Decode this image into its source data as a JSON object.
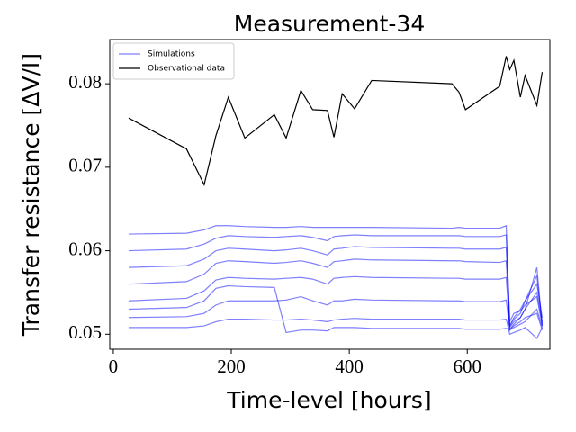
{
  "chart_data": {
    "type": "line",
    "title": "Measurement-34",
    "xlabel": "Time-level [hours]",
    "ylabel": "Transfer resistance [ΔV/I]",
    "x": [
      26,
      124,
      154,
      174,
      195,
      223,
      273,
      293,
      318,
      338,
      363,
      374,
      388,
      409,
      438,
      574,
      586,
      597,
      655,
      666,
      672,
      679,
      690,
      698,
      718,
      727
    ],
    "xlim": [
      -6,
      740
    ],
    "ylim": [
      0.0482,
      0.0853
    ],
    "xticks": [
      0,
      200,
      400,
      600
    ],
    "yticks": [
      0.05,
      0.06,
      0.07,
      0.08
    ],
    "grid": false,
    "legend": "upper left",
    "series": [
      {
        "name": "Simulations",
        "color": "#0000ff",
        "alpha": 0.5,
        "values": [
          0.062,
          0.0621,
          0.0625,
          0.063,
          0.063,
          0.0629,
          0.0628,
          0.0628,
          0.0629,
          0.0628,
          0.0628,
          0.0628,
          0.0628,
          0.0628,
          0.0628,
          0.0627,
          0.0628,
          0.0627,
          0.0627,
          0.063,
          0.051,
          0.052,
          0.053,
          0.054,
          0.056,
          0.052
        ]
      },
      {
        "name": "Simulations",
        "color": "#0000ff",
        "alpha": 0.5,
        "values": [
          0.06,
          0.0602,
          0.0608,
          0.0615,
          0.0618,
          0.0617,
          0.0616,
          0.0617,
          0.0618,
          0.0616,
          0.0612,
          0.0617,
          0.0618,
          0.0619,
          0.0618,
          0.0618,
          0.0618,
          0.0617,
          0.0617,
          0.0619,
          0.0515,
          0.0525,
          0.0528,
          0.0535,
          0.0545,
          0.051
        ]
      },
      {
        "name": "Simulations",
        "color": "#0000ff",
        "alpha": 0.5,
        "values": [
          0.058,
          0.0582,
          0.059,
          0.06,
          0.0603,
          0.0602,
          0.06,
          0.0601,
          0.0603,
          0.06,
          0.0595,
          0.0602,
          0.0603,
          0.0605,
          0.0604,
          0.0603,
          0.0603,
          0.0602,
          0.0602,
          0.0604,
          0.0505,
          0.0512,
          0.052,
          0.053,
          0.055,
          0.0515
        ]
      },
      {
        "name": "Simulations",
        "color": "#0000ff",
        "alpha": 0.5,
        "values": [
          0.056,
          0.0563,
          0.0572,
          0.0585,
          0.0588,
          0.0587,
          0.0585,
          0.0586,
          0.0588,
          0.0585,
          0.058,
          0.0587,
          0.0588,
          0.059,
          0.0589,
          0.0588,
          0.0588,
          0.0587,
          0.0586,
          0.0588,
          0.051,
          0.0518,
          0.0525,
          0.054,
          0.057,
          0.0512
        ]
      },
      {
        "name": "Simulations",
        "color": "#0000ff",
        "alpha": 0.5,
        "values": [
          0.054,
          0.0543,
          0.0552,
          0.0565,
          0.0568,
          0.0567,
          0.0566,
          0.0567,
          0.0568,
          0.0566,
          0.056,
          0.0567,
          0.0568,
          0.0569,
          0.0568,
          0.0567,
          0.0567,
          0.0566,
          0.0566,
          0.0568,
          0.0508,
          0.0515,
          0.052,
          0.053,
          0.058,
          0.051
        ]
      },
      {
        "name": "Simulations",
        "color": "#0000ff",
        "alpha": 0.5,
        "values": [
          0.053,
          0.0532,
          0.054,
          0.0555,
          0.0558,
          0.0557,
          0.0556,
          0.0502,
          0.0505,
          0.0505,
          0.0504,
          0.0508,
          0.0508,
          0.0508,
          0.0507,
          0.0507,
          0.0507,
          0.0506,
          0.0506,
          0.0507,
          0.0506,
          0.051,
          0.0515,
          0.052,
          0.0525,
          0.0505
        ]
      },
      {
        "name": "Simulations",
        "color": "#0000ff",
        "alpha": 0.5,
        "values": [
          0.052,
          0.0521,
          0.0525,
          0.0535,
          0.054,
          0.054,
          0.054,
          0.0541,
          0.0545,
          0.054,
          0.0535,
          0.054,
          0.054,
          0.0542,
          0.0541,
          0.054,
          0.054,
          0.0539,
          0.0539,
          0.0541,
          0.0505,
          0.0508,
          0.0512,
          0.0515,
          0.053,
          0.0508
        ]
      },
      {
        "name": "Simulations",
        "color": "#0000ff",
        "alpha": 0.5,
        "values": [
          0.0508,
          0.0508,
          0.051,
          0.0515,
          0.0518,
          0.0518,
          0.0517,
          0.0517,
          0.0518,
          0.0517,
          0.0515,
          0.0517,
          0.0518,
          0.0519,
          0.0518,
          0.0518,
          0.0518,
          0.0517,
          0.0517,
          0.0518,
          0.05,
          0.0502,
          0.0505,
          0.0508,
          0.0495,
          0.0508
        ]
      },
      {
        "name": "Observational data",
        "color": "#000000",
        "alpha": 1,
        "values": [
          0.0759,
          0.0722,
          0.0679,
          0.0738,
          0.0784,
          0.0735,
          0.0763,
          0.0735,
          0.0792,
          0.0769,
          0.0768,
          0.0736,
          0.0788,
          0.077,
          0.0804,
          0.08,
          0.079,
          0.0769,
          0.0797,
          0.0833,
          0.0817,
          0.0828,
          0.0784,
          0.081,
          0.0774,
          0.0814
        ]
      }
    ]
  }
}
